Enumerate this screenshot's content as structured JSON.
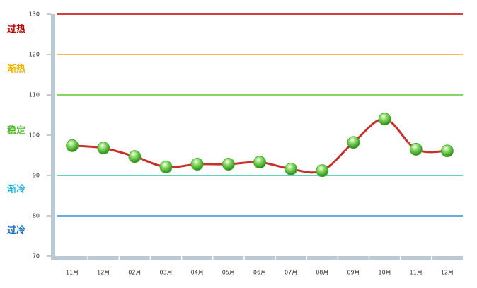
{
  "chart_data": {
    "type": "line",
    "categories": [
      "11月",
      "12月",
      "02月",
      "03月",
      "04月",
      "05月",
      "06月",
      "07月",
      "08月",
      "09月",
      "10月",
      "11月",
      "12月"
    ],
    "values": [
      97.4,
      96.8,
      94.7,
      92.1,
      92.8,
      92.8,
      93.3,
      91.6,
      91.2,
      98.2,
      104.0,
      96.5,
      96.1
    ],
    "color": "#c8302a",
    "marker_color": "#3fa82a",
    "ylim": [
      70,
      130
    ],
    "yticks": [
      70,
      80,
      90,
      100,
      110,
      120,
      130
    ],
    "reference_lines": [
      {
        "value": 130,
        "color": "#c00000"
      },
      {
        "value": 120,
        "color": "#f5a623"
      },
      {
        "value": 110,
        "color": "#5cc832"
      },
      {
        "value": 90,
        "color": "#2ec8a0"
      },
      {
        "value": 80,
        "color": "#3a8fd8"
      }
    ],
    "zone_labels": [
      {
        "label": "过热",
        "color": "#c00000"
      },
      {
        "label": "渐热",
        "color": "#f0b400"
      },
      {
        "label": "稳定",
        "color": "#4cbb2a"
      },
      {
        "label": "渐冷",
        "color": "#1fb0d8"
      },
      {
        "label": "过冷",
        "color": "#1a70c0"
      }
    ]
  }
}
